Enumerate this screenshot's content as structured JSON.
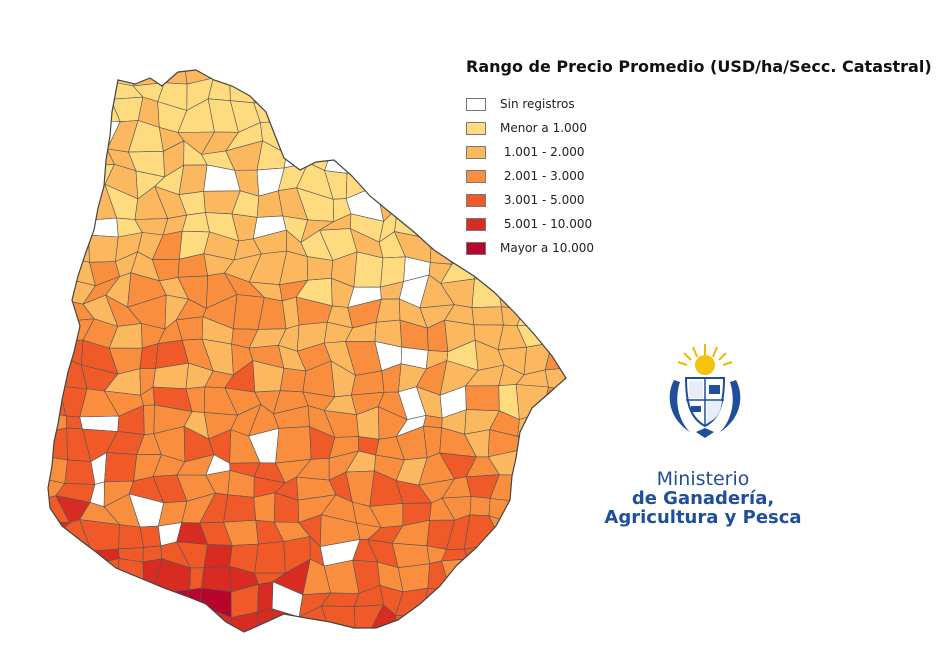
{
  "legend": {
    "title": "Rango de Precio Promedio (USD/ha/Secc. Catastral)",
    "items": [
      {
        "label": "Sin registros",
        "color": "#ffffff"
      },
      {
        "label": "Menor a 1.000",
        "color": "#fddb7e"
      },
      {
        "label": " 1.001 - 2.000",
        "color": "#fcb85e"
      },
      {
        "label": " 2.001 - 3.000",
        "color": "#f98f3e"
      },
      {
        "label": " 3.001 - 5.000",
        "color": "#ef5a28"
      },
      {
        "label": " 5.001 - 10.000",
        "color": "#d82b22"
      },
      {
        "label": "Mayor a 10.000",
        "color": "#b7062b"
      }
    ]
  },
  "logo": {
    "line1": "Ministerio",
    "line2": "de Ganadería,",
    "line3": "Agricultura y Pesca",
    "color": "#1f4e9a",
    "emblem_icon": "uruguay-coat-of-arms"
  },
  "map": {
    "region": "Uruguay",
    "region_unit": "Sección Catastral",
    "border_color": "#555555"
  }
}
